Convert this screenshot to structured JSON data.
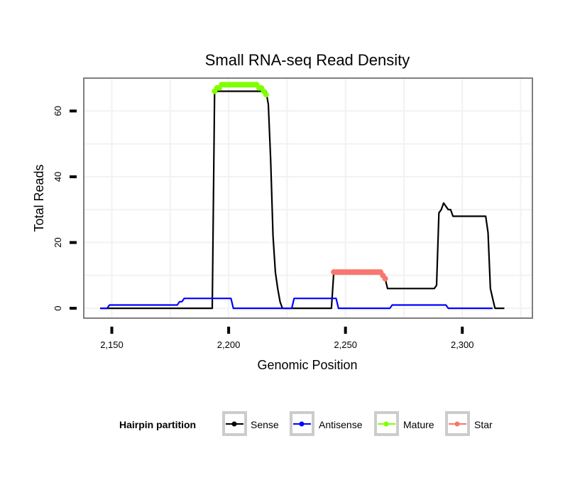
{
  "chart_data": {
    "type": "line",
    "title": "Small RNA-seq Read Density",
    "xlabel": "Genomic Position",
    "ylabel": "Total Reads",
    "xlim": [
      2138,
      2330
    ],
    "ylim": [
      -3,
      70
    ],
    "x_ticks": [
      2150,
      2200,
      2250,
      2300
    ],
    "x_tick_labels": [
      "2,150",
      "2,200",
      "2,250",
      "2,300"
    ],
    "y_ticks": [
      0,
      20,
      40,
      60
    ],
    "y_tick_labels": [
      "0",
      "20",
      "40",
      "60"
    ],
    "grid": true,
    "legend": {
      "title": "Hairpin partition",
      "position": "bottom",
      "entries": [
        "Sense",
        "Antisense",
        "Mature",
        "Star"
      ]
    },
    "series": [
      {
        "name": "Sense",
        "color": "#000000",
        "style": "line",
        "points": [
          [
            2145,
            0
          ],
          [
            2193,
            0
          ],
          [
            2194,
            66
          ],
          [
            2216,
            66
          ],
          [
            2217,
            62
          ],
          [
            2218,
            45
          ],
          [
            2219,
            22
          ],
          [
            2220,
            11
          ],
          [
            2221,
            6
          ],
          [
            2222,
            2
          ],
          [
            2223,
            0
          ],
          [
            2244,
            0
          ],
          [
            2245,
            11
          ],
          [
            2265,
            11
          ],
          [
            2267,
            9
          ],
          [
            2268,
            6
          ],
          [
            2288,
            6
          ],
          [
            2289,
            7
          ],
          [
            2290,
            29
          ],
          [
            2291,
            30
          ],
          [
            2292,
            32
          ],
          [
            2293,
            31
          ],
          [
            2294,
            30
          ],
          [
            2295,
            30
          ],
          [
            2296,
            28
          ],
          [
            2310,
            28
          ],
          [
            2311,
            23
          ],
          [
            2312,
            6
          ],
          [
            2313,
            3
          ],
          [
            2314,
            0
          ],
          [
            2318,
            0
          ]
        ]
      },
      {
        "name": "Antisense",
        "color": "#0000ff",
        "style": "line",
        "points": [
          [
            2145,
            0
          ],
          [
            2148,
            0
          ],
          [
            2149,
            1
          ],
          [
            2178,
            1
          ],
          [
            2179,
            2
          ],
          [
            2180,
            2
          ],
          [
            2181,
            3
          ],
          [
            2201,
            3
          ],
          [
            2202,
            0
          ],
          [
            2227,
            0
          ],
          [
            2228,
            3
          ],
          [
            2246,
            3
          ],
          [
            2247,
            0
          ],
          [
            2269,
            0
          ],
          [
            2270,
            1
          ],
          [
            2293,
            1
          ],
          [
            2294,
            0
          ],
          [
            2313,
            0
          ]
        ]
      },
      {
        "name": "Mature",
        "color": "#80ff00",
        "style": "points",
        "points": [
          [
            2194,
            66
          ],
          [
            2195,
            67
          ],
          [
            2196,
            67
          ],
          [
            2197,
            68
          ],
          [
            2198,
            68
          ],
          [
            2199,
            68
          ],
          [
            2200,
            68
          ],
          [
            2201,
            68
          ],
          [
            2202,
            68
          ],
          [
            2203,
            68
          ],
          [
            2204,
            68
          ],
          [
            2205,
            68
          ],
          [
            2206,
            68
          ],
          [
            2207,
            68
          ],
          [
            2208,
            68
          ],
          [
            2209,
            68
          ],
          [
            2210,
            68
          ],
          [
            2211,
            68
          ],
          [
            2212,
            68
          ],
          [
            2213,
            67
          ],
          [
            2214,
            67
          ],
          [
            2215,
            66
          ],
          [
            2216,
            65
          ]
        ]
      },
      {
        "name": "Star",
        "color": "#f8766d",
        "style": "points",
        "points": [
          [
            2245,
            11
          ],
          [
            2246,
            11
          ],
          [
            2247,
            11
          ],
          [
            2248,
            11
          ],
          [
            2249,
            11
          ],
          [
            2250,
            11
          ],
          [
            2251,
            11
          ],
          [
            2252,
            11
          ],
          [
            2253,
            11
          ],
          [
            2254,
            11
          ],
          [
            2255,
            11
          ],
          [
            2256,
            11
          ],
          [
            2257,
            11
          ],
          [
            2258,
            11
          ],
          [
            2259,
            11
          ],
          [
            2260,
            11
          ],
          [
            2261,
            11
          ],
          [
            2262,
            11
          ],
          [
            2263,
            11
          ],
          [
            2264,
            11
          ],
          [
            2265,
            11
          ],
          [
            2266,
            10
          ],
          [
            2267,
            9
          ]
        ]
      }
    ]
  }
}
